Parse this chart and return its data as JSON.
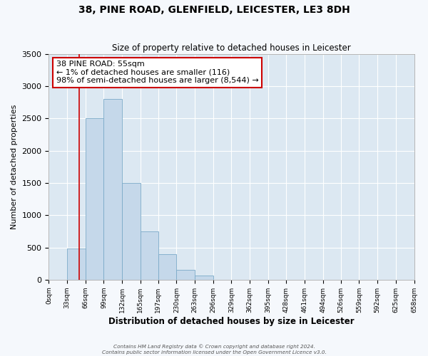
{
  "title": "38, PINE ROAD, GLENFIELD, LEICESTER, LE3 8DH",
  "subtitle": "Size of property relative to detached houses in Leicester",
  "xlabel": "Distribution of detached houses by size in Leicester",
  "ylabel": "Number of detached properties",
  "bar_color": "#c5d8ea",
  "bar_edge_color": "#7baac8",
  "fig_facecolor": "#f5f8fc",
  "ax_facecolor": "#dce8f2",
  "grid_color": "#ffffff",
  "bins": [
    0,
    33,
    66,
    99,
    132,
    165,
    197,
    230,
    263,
    296,
    329,
    362,
    395,
    428,
    461,
    494,
    526,
    559,
    592,
    625,
    658
  ],
  "bin_labels": [
    "0sqm",
    "33sqm",
    "66sqm",
    "99sqm",
    "132sqm",
    "165sqm",
    "197sqm",
    "230sqm",
    "263sqm",
    "296sqm",
    "329sqm",
    "362sqm",
    "395sqm",
    "428sqm",
    "461sqm",
    "494sqm",
    "526sqm",
    "559sqm",
    "592sqm",
    "625sqm",
    "658sqm"
  ],
  "bar_heights": [
    0,
    480,
    2500,
    2800,
    1500,
    750,
    400,
    150,
    60,
    0,
    0,
    0,
    0,
    0,
    0,
    0,
    0,
    0,
    0,
    0
  ],
  "ylim": [
    0,
    3500
  ],
  "yticks": [
    0,
    500,
    1000,
    1500,
    2000,
    2500,
    3000,
    3500
  ],
  "property_line_x": 55,
  "property_line_color": "#cc0000",
  "annotation_line1": "38 PINE ROAD: 55sqm",
  "annotation_line2": "← 1% of detached houses are smaller (116)",
  "annotation_line3": "98% of semi-detached houses are larger (8,544) →",
  "annotation_box_color": "#ffffff",
  "annotation_box_edge": "#cc0000",
  "footer_line1": "Contains HM Land Registry data © Crown copyright and database right 2024.",
  "footer_line2": "Contains public sector information licensed under the Open Government Licence v3.0."
}
